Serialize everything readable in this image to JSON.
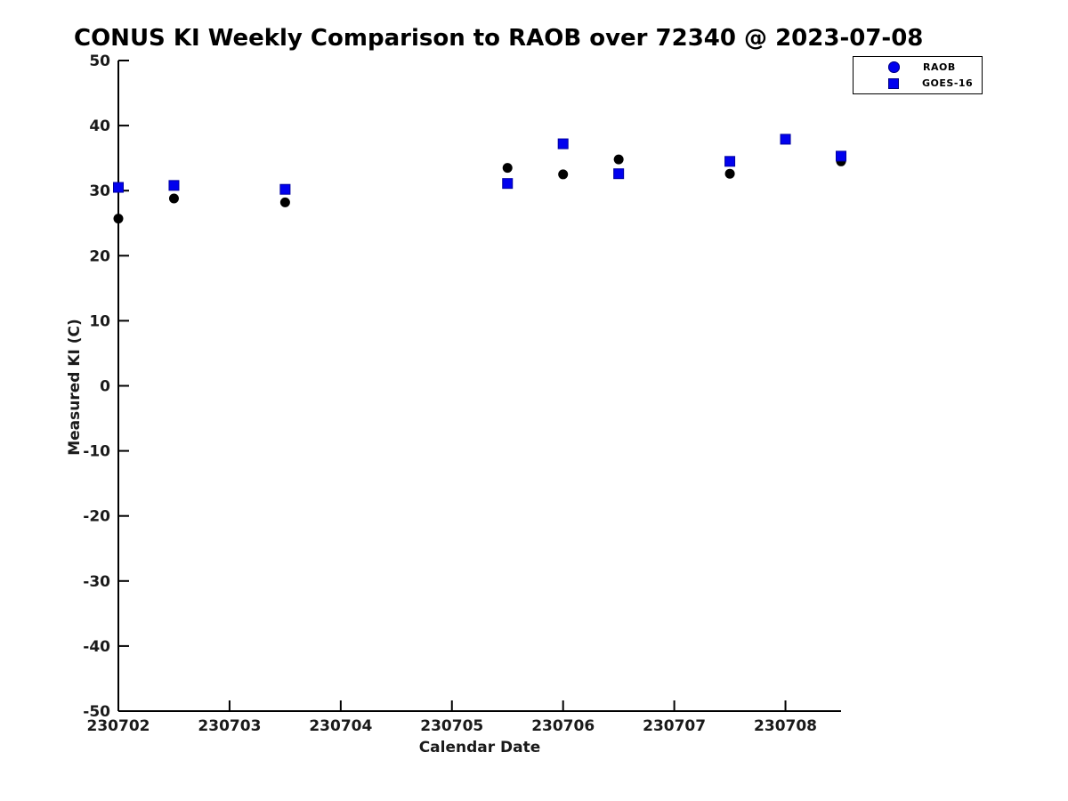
{
  "figure": {
    "background": "#ffffff",
    "axis_color": "#000000",
    "tick_label_color": "#1a1a1a"
  },
  "chart_data": {
    "type": "scatter",
    "title": "CONUS KI Weekly Comparison to RAOB over 72340 @ 2023-07-08",
    "xlabel": "Calendar Date",
    "ylabel": "Measured KI (C)",
    "xlim": [
      230702,
      230708.5
    ],
    "ylim": [
      -50,
      50
    ],
    "xticks": [
      230702,
      230703,
      230704,
      230705,
      230706,
      230707,
      230708
    ],
    "xtick_labels": [
      "230702",
      "230703",
      "230704",
      "230705",
      "230706",
      "230707",
      "230708"
    ],
    "yticks": [
      50,
      40,
      30,
      20,
      10,
      0,
      -10,
      -20,
      -30,
      -40,
      -50
    ],
    "ytick_labels": [
      "50",
      "40",
      "30",
      "20",
      "10",
      "0",
      "-10",
      "-20",
      "-30",
      "-40",
      "-50"
    ],
    "grid": false,
    "legend": {
      "position": "top-right",
      "entries": [
        {
          "label": "RAOB",
          "marker": "circle",
          "color": "#0101ee"
        },
        {
          "label": "GOES-16",
          "marker": "square",
          "color": "#0101ee"
        }
      ]
    },
    "series": [
      {
        "name": "RAOB",
        "marker": "circle",
        "color": "#000000",
        "x": [
          230702,
          230702.5,
          230703.5,
          230705.5,
          230706,
          230706.5,
          230707.5,
          230708,
          230708.5
        ],
        "y": [
          25.7,
          28.8,
          28.2,
          33.5,
          32.5,
          34.8,
          32.6,
          37.9,
          34.5
        ]
      },
      {
        "name": "GOES-16",
        "marker": "square",
        "color": "#0101ee",
        "x": [
          230702,
          230702.5,
          230703.5,
          230705.5,
          230706,
          230706.5,
          230707.5,
          230708,
          230708.5
        ],
        "y": [
          30.5,
          30.8,
          30.2,
          31.1,
          37.2,
          32.6,
          34.5,
          37.9,
          35.3
        ]
      }
    ]
  }
}
